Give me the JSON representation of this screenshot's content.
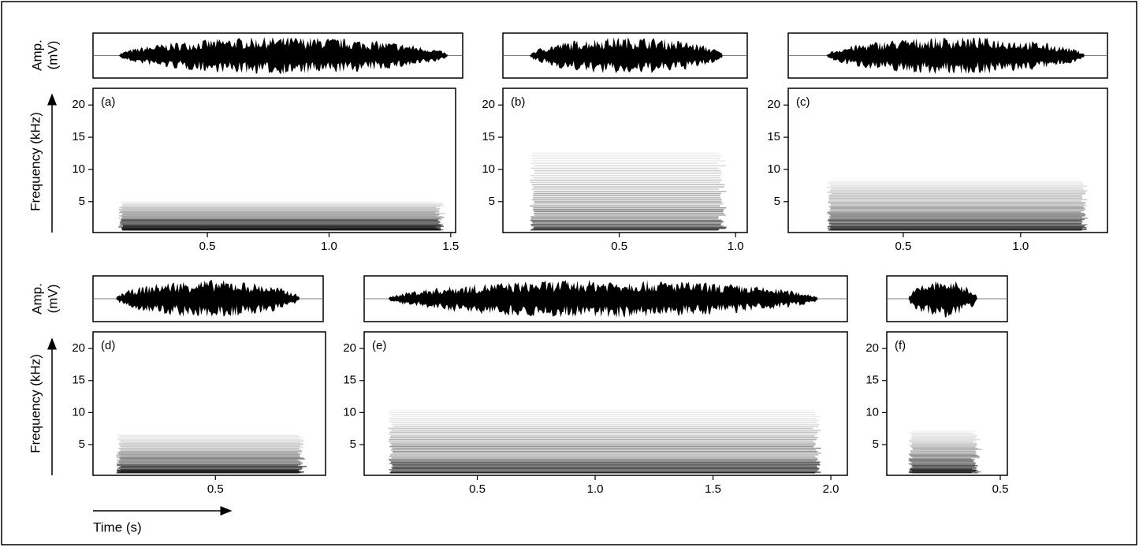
{
  "figure": {
    "amplitude_label": [
      "Amp.",
      "(mV)"
    ],
    "frequency_label": "Frequency (kHz)",
    "time_label": "Time (s)"
  },
  "chart_data": [
    {
      "type": "spectrogram",
      "title": "(a)",
      "xlim": [
        0.03,
        1.52
      ],
      "xticks": [
        0.5,
        {
          "value": 1,
          "label": "1.0"
        },
        1.5
      ],
      "ylim": [
        0.2,
        22.6
      ],
      "yticks": [
        5,
        10,
        15,
        20
      ]
    },
    {
      "type": "spectrogram",
      "title": "(b)",
      "xlim": [
        0,
        1.05
      ],
      "xticks": [
        0.5,
        {
          "value": 1,
          "label": "1.0"
        }
      ],
      "ylim": [
        0.2,
        22.6
      ],
      "yticks": [
        5,
        10,
        15,
        20
      ]
    },
    {
      "type": "spectrogram",
      "title": "(c)",
      "xlim": [
        0.01,
        1.37
      ],
      "xticks": [
        0.5,
        {
          "value": 1,
          "label": "1.0"
        }
      ],
      "ylim": [
        0.2,
        22.6
      ],
      "yticks": [
        5,
        10,
        15,
        20
      ]
    },
    {
      "type": "spectrogram",
      "title": "(d)",
      "xlim": [
        0,
        0.95
      ],
      "xticks": [
        0.5
      ],
      "ylim": [
        0.2,
        22.6
      ],
      "yticks": [
        5,
        10,
        15,
        20
      ]
    },
    {
      "type": "spectrogram",
      "title": "(e)",
      "xlim": [
        0.02,
        2.07
      ],
      "xticks": [
        0.5,
        {
          "value": 1,
          "label": "1.0"
        },
        1.5,
        {
          "value": 2,
          "label": "2.0"
        }
      ],
      "ylim": [
        0.2,
        22.6
      ],
      "yticks": [
        5,
        10,
        15,
        20
      ]
    },
    {
      "type": "spectrogram",
      "title": "(f)",
      "xlim": [
        0.02,
        0.53
      ],
      "xticks": [
        0.5
      ],
      "ylim": [
        0.2,
        22.6
      ],
      "yticks": [
        5,
        10,
        15,
        20
      ]
    }
  ]
}
